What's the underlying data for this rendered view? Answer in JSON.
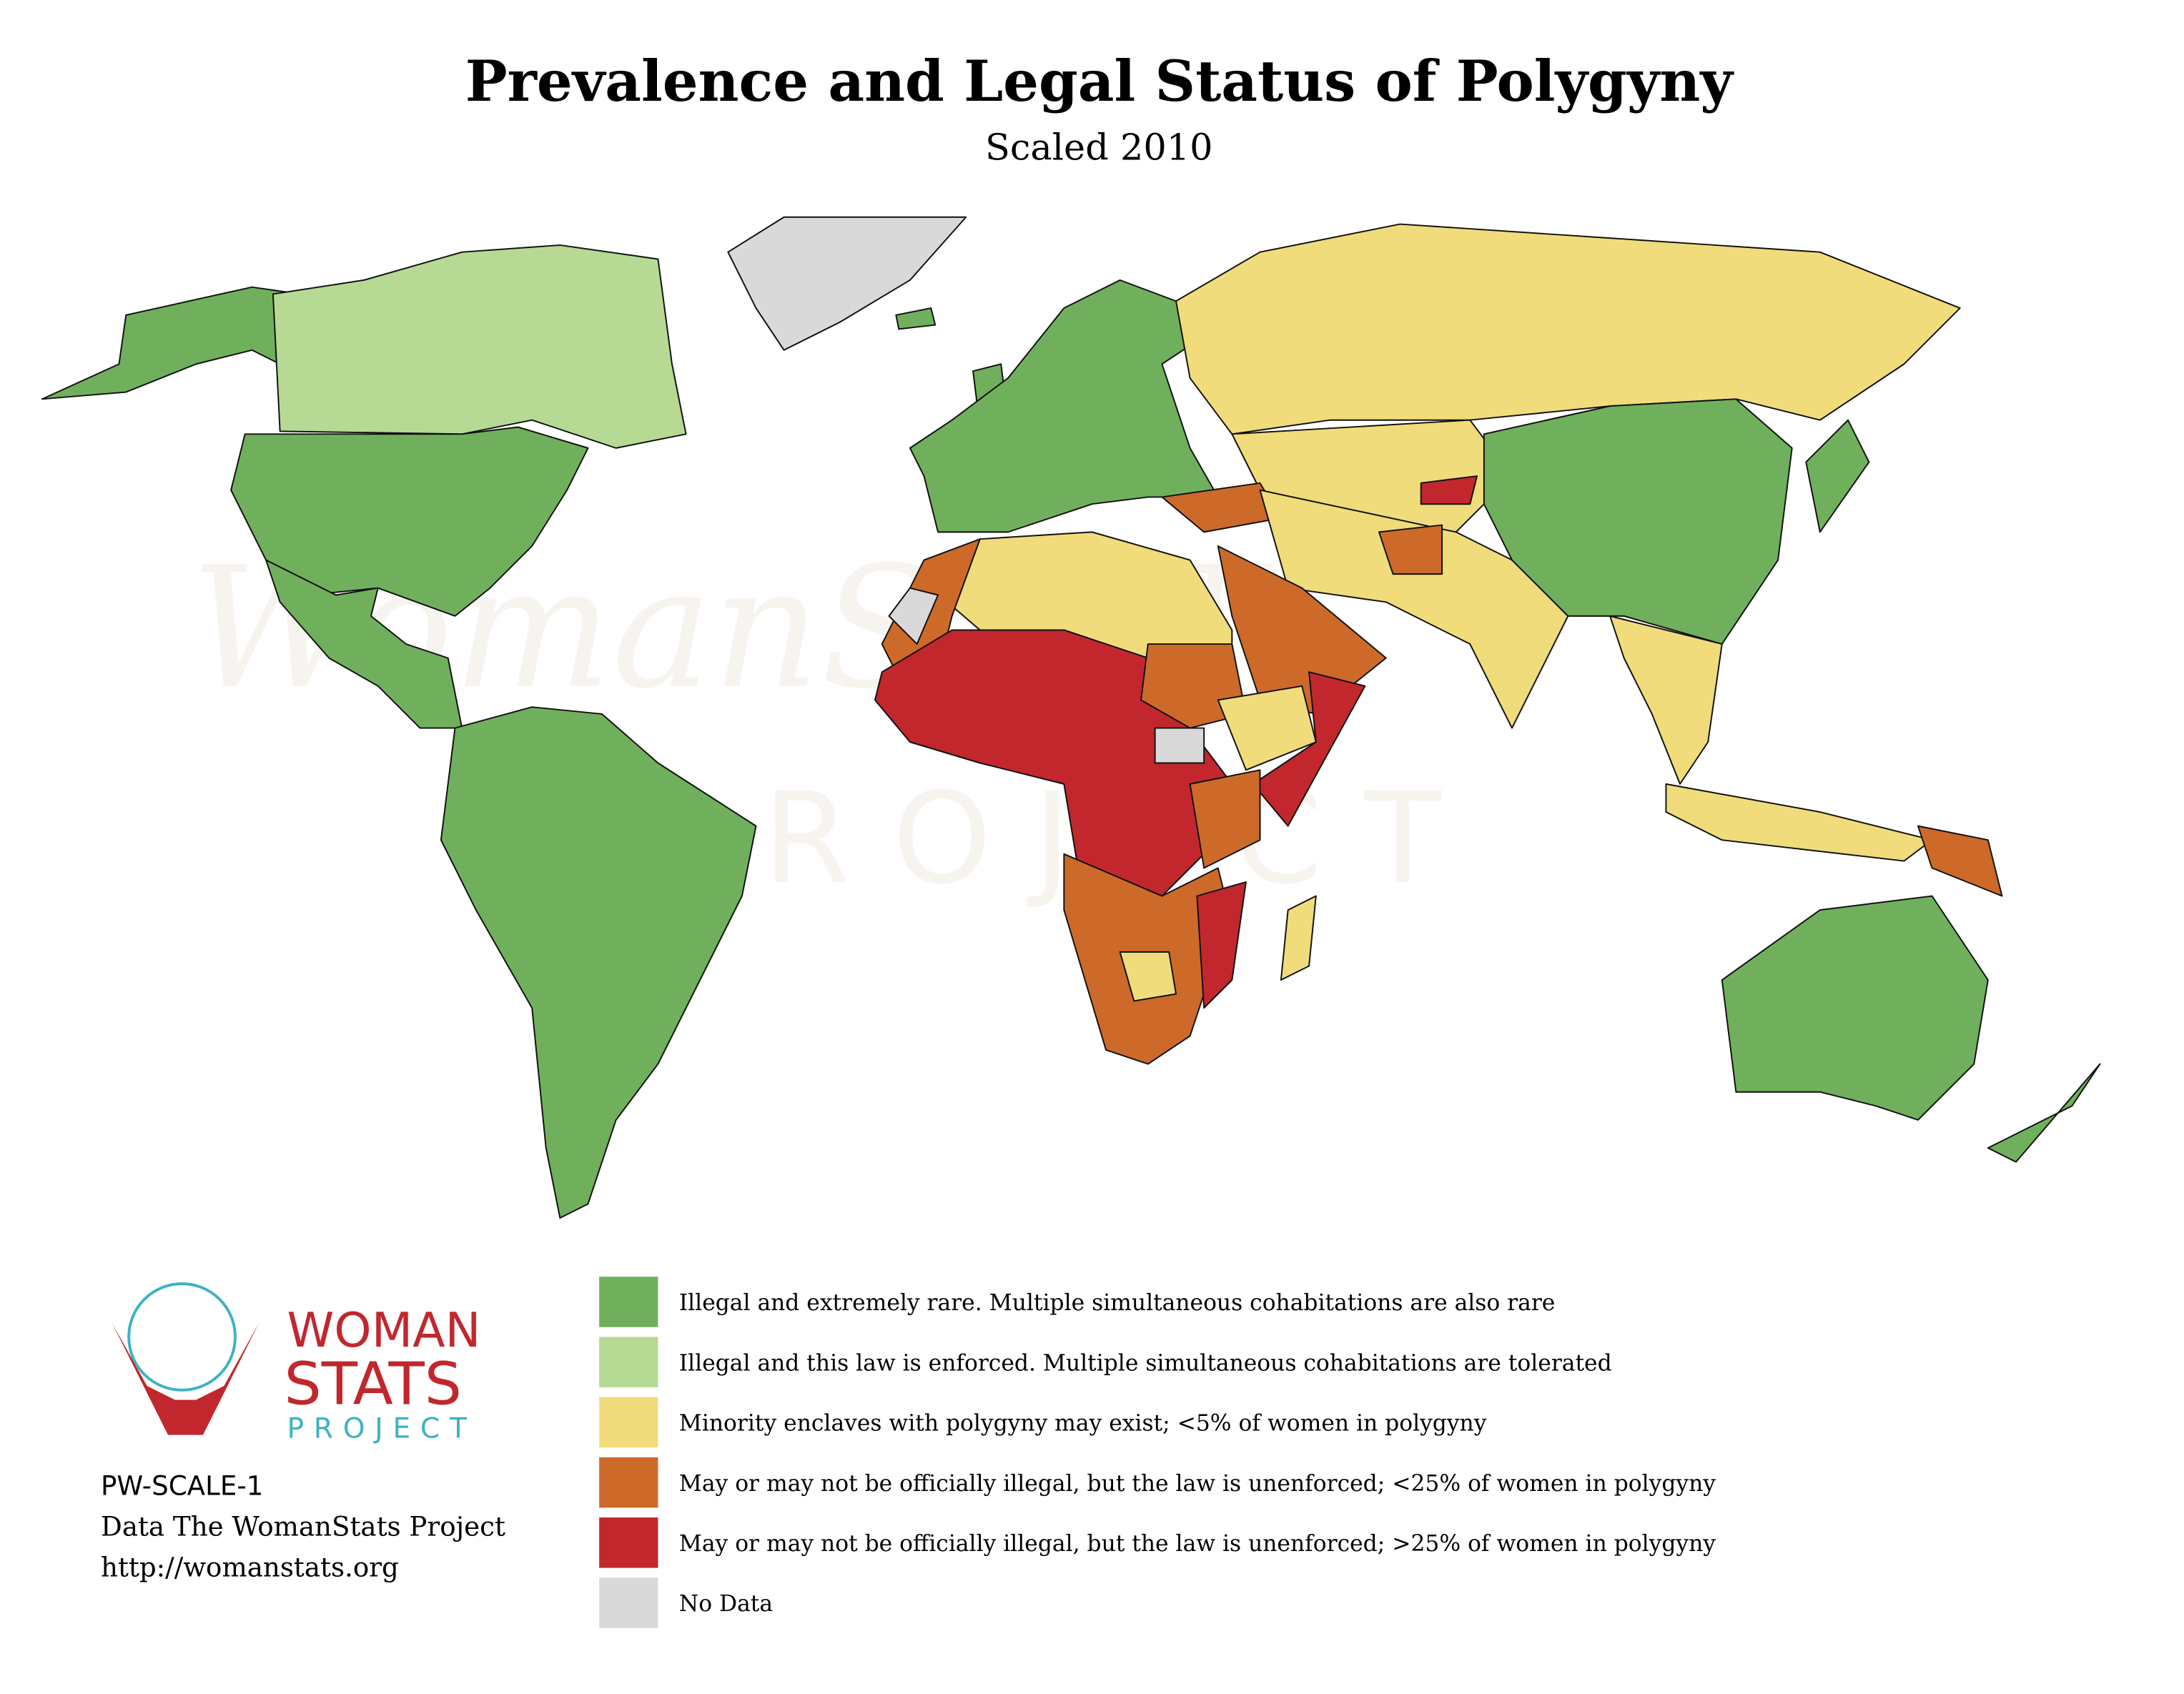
{
  "title": "Prevalence and Legal Status of Polygyny",
  "subtitle": "Scaled 2010",
  "watermark": {
    "name": "WomanSTATS",
    "sub": "PROJECT"
  },
  "legend": [
    {
      "label": "Illegal and extremely rare. Multiple simultaneous cohabitations are also rare",
      "color": "#70b05c"
    },
    {
      "label": "Illegal and this law is enforced. Multiple simultaneous cohabitations are tolerated",
      "color": "#b6d994"
    },
    {
      "label": "Minority enclaves with polygyny may exist; <5% of women in polygyny",
      "color": "#f0dc7a"
    },
    {
      "label": "May or may not be officially illegal, but the law is unenforced; <25% of women in polygyny",
      "color": "#cd6a29"
    },
    {
      "label": "May or may not be officially illegal, but the law is unenforced; >25% of women in polygyny",
      "color": "#c1272d"
    },
    {
      "label": "No Data",
      "color": "#d9d9d9"
    }
  ],
  "logo": {
    "line1": "WOMAN",
    "line2": "STATS",
    "line3": "PROJECT"
  },
  "footer": [
    "PW-SCALE-1",
    "Data The WomanStats Project",
    "http://womanstats.org"
  ]
}
